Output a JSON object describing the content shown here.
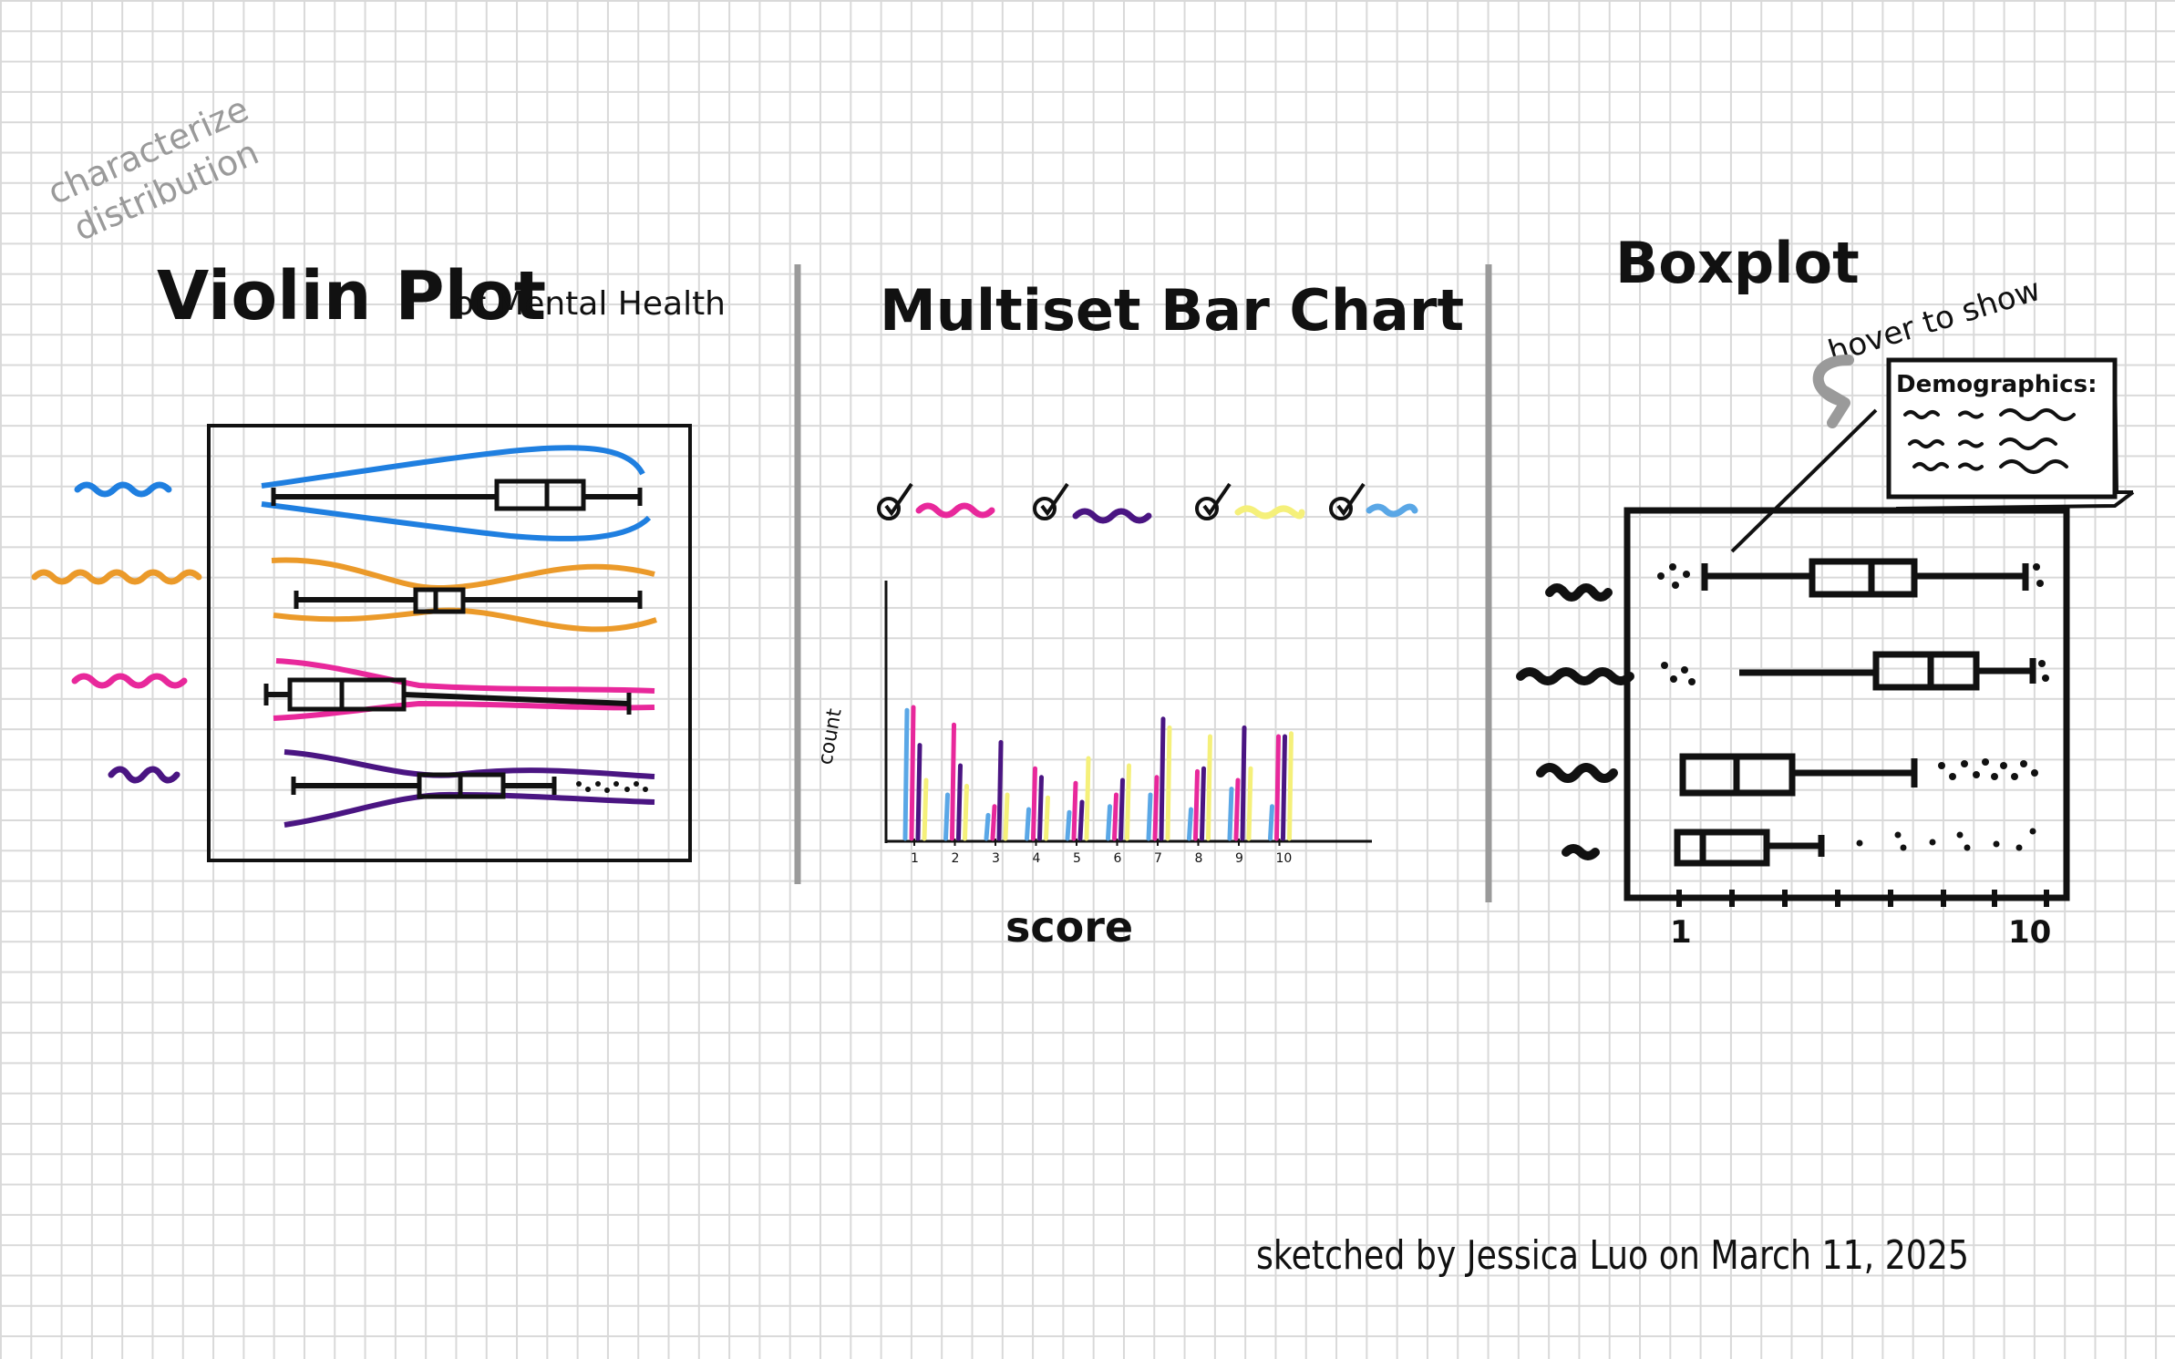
{
  "corner_note": {
    "line1": "characterize",
    "line2": "distribution"
  },
  "violin": {
    "title_main": "Violin Plot",
    "title_sub": "of Mental Health",
    "series_colors": [
      "#1f7fe0",
      "#eb9a2a",
      "#e8289b",
      "#4a1582"
    ]
  },
  "bar": {
    "title": "Multiset Bar Chart",
    "ylabel": "count",
    "xlabel": "score",
    "ticks": [
      "1",
      "2",
      "3",
      "4",
      "5",
      "6",
      "7",
      "8",
      "9",
      "10"
    ],
    "legend_colors": [
      "#e8289b",
      "#4a1582",
      "#f5f07a",
      "#5aa7e6"
    ]
  },
  "boxplot": {
    "title": "Boxplot",
    "hover_note": "hover to show",
    "tooltip_title": "Demographics:",
    "axis_min_label": "1",
    "axis_max_label": "10"
  },
  "credit": "sketched by Jessica Luo on March 11, 2025",
  "colors": {
    "blue": "#1f7fe0",
    "orange": "#eb9a2a",
    "pink": "#e8289b",
    "purple": "#4a1582",
    "yellow": "#f5f07a",
    "lightblue": "#5aa7e6",
    "divider": "#9a9a9a"
  }
}
